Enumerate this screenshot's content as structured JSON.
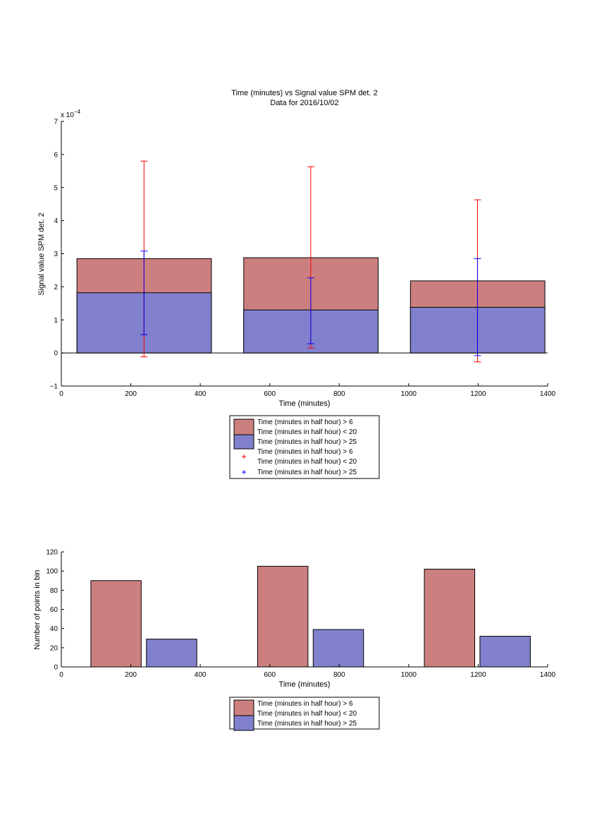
{
  "colors": {
    "red_fill": "#cc7f7f",
    "blue_fill": "#8080cc",
    "red_line": "#ff0000",
    "blue_line": "#0000ff",
    "axis": "#000000"
  },
  "chart_data": [
    {
      "type": "bar",
      "title": "Time (minutes) vs Signal value SPM det. 2",
      "subtitle": "Data for 2016/10/02",
      "xlabel": "Time (minutes)",
      "ylabel": "Signal value SPM det. 2",
      "y_exponent": "x 10",
      "y_exponent_power": "−4",
      "xlim": [
        0,
        1400
      ],
      "ylim": [
        -1,
        7
      ],
      "xticks": [
        "0",
        "200",
        "400",
        "600",
        "800",
        "1000",
        "1200",
        "1400"
      ],
      "yticks": [
        "−1",
        "0",
        "1",
        "2",
        "3",
        "4",
        "5",
        "6",
        "7"
      ],
      "grid": false,
      "legend_position": "below",
      "bars": [
        {
          "x0": 45,
          "x1": 432,
          "red": 2.85,
          "blue": 1.82
        },
        {
          "x0": 525,
          "x1": 912,
          "red": 2.88,
          "blue": 1.3
        },
        {
          "x0": 1005,
          "x1": 1392,
          "red": 2.18,
          "blue": 1.38
        }
      ],
      "errorbars": [
        {
          "x": 238,
          "red_low": -0.12,
          "red_high": 5.8,
          "blue_low": 0.55,
          "blue_high": 3.08
        },
        {
          "x": 718,
          "red_low": 0.15,
          "red_high": 5.63,
          "blue_low": 0.28,
          "blue_high": 2.27
        },
        {
          "x": 1198,
          "red_low": -0.27,
          "red_high": 4.63,
          "blue_low": -0.08,
          "blue_high": 2.85
        }
      ],
      "legend": [
        "Time (minutes in half hour) > 6",
        "Time (minutes in half hour) < 20",
        "Time (minutes in half hour) > 25",
        "Time (minutes in half hour) > 6",
        "Time (minutes in half hour) < 20",
        "Time (minutes in half hour) > 25"
      ]
    },
    {
      "type": "bar",
      "xlabel": "Time (minutes)",
      "ylabel": "Number of points in bin",
      "xlim": [
        0,
        1400
      ],
      "ylim": [
        0,
        120
      ],
      "xticks": [
        "0",
        "200",
        "400",
        "600",
        "800",
        "1000",
        "1200",
        "1400"
      ],
      "yticks": [
        "0",
        "20",
        "40",
        "60",
        "80",
        "100",
        "120"
      ],
      "grid": false,
      "legend_position": "below",
      "bars": [
        {
          "series": "red",
          "x0": 85,
          "x1": 230,
          "value": 90
        },
        {
          "series": "blue",
          "x0": 245,
          "x1": 390,
          "value": 29
        },
        {
          "series": "red",
          "x0": 565,
          "x1": 710,
          "value": 105
        },
        {
          "series": "blue",
          "x0": 725,
          "x1": 870,
          "value": 39
        },
        {
          "series": "red",
          "x0": 1045,
          "x1": 1190,
          "value": 102
        },
        {
          "series": "blue",
          "x0": 1205,
          "x1": 1350,
          "value": 32
        }
      ],
      "legend": [
        "Time (minutes in half hour) > 6",
        "Time (minutes in half hour) < 20",
        "Time (minutes in half hour) > 25"
      ]
    }
  ]
}
